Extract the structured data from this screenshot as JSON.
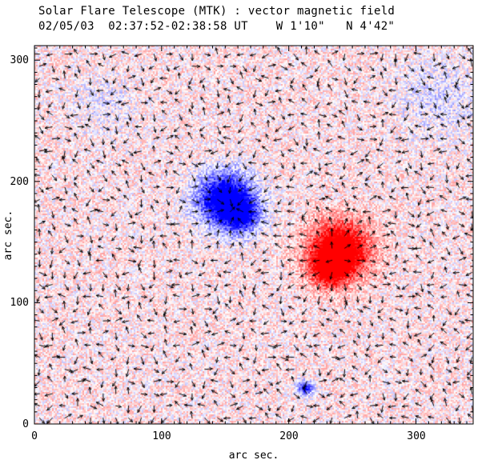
{
  "page": {
    "background": "#ffffff"
  },
  "header": {
    "title": "Solar Flare Telescope (MTK) : vector magnetic field",
    "subtitle": "02/05/03  02:37:52-02:38:58 UT    W 1'10\"   N 4'42\""
  },
  "chart_data": {
    "type": "heatmap",
    "title": "Solar Flare Telescope (MTK) : vector magnetic field",
    "subtitle": "02/05/03  02:37:52-02:38:58 UT    W 1'10\"   N 4'42\"",
    "xlabel": "arc sec.",
    "ylabel": "arc sec.",
    "xticks": [
      "0",
      "100",
      "200",
      "300"
    ],
    "yticks": [
      "0",
      "100",
      "200",
      "300"
    ],
    "xlim": [
      0,
      345
    ],
    "ylim": [
      0,
      312
    ],
    "major_tick_step": 100,
    "minor_tick_step": 10,
    "colormap": {
      "positive": "#ff0000",
      "negative": "#0000ff",
      "background": "#ffffff"
    },
    "noise": {
      "amplitude": 0.6,
      "bias": 0.08,
      "seed": 1234
    },
    "features": [
      {
        "name": "negative-polarity-sunspot",
        "x": 150,
        "y": 185,
        "sigma": 15,
        "amp": -1.5
      },
      {
        "name": "negative-polarity-extension",
        "x": 163,
        "y": 171,
        "sigma": 10,
        "amp": -0.9
      },
      {
        "name": "positive-polarity-sunspot",
        "x": 240,
        "y": 143,
        "sigma": 16,
        "amp": 1.5
      },
      {
        "name": "positive-polarity-extension",
        "x": 231,
        "y": 127,
        "sigma": 10,
        "amp": 0.8
      },
      {
        "name": "small-negative-pore",
        "x": 213,
        "y": 30,
        "sigma": 4,
        "amp": -1.1
      },
      {
        "name": "faint-negative-region-ne",
        "x": 318,
        "y": 268,
        "sigma": 22,
        "amp": -0.22
      },
      {
        "name": "faint-negative-region-nw",
        "x": 55,
        "y": 262,
        "sigma": 18,
        "amp": -0.16
      }
    ],
    "vector_overlay": {
      "grid_step": 10,
      "color": "#000000",
      "seed": 99,
      "description": "transverse magnetic field direction arrows on a 10 arcsec grid"
    }
  }
}
